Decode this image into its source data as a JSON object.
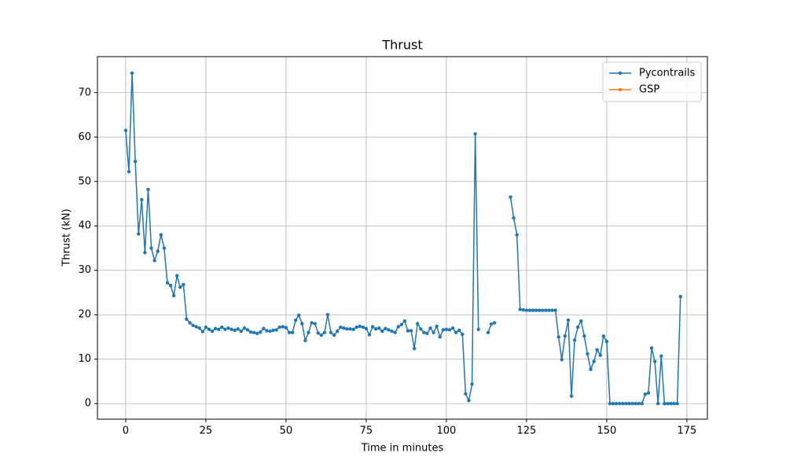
{
  "chart_data": {
    "type": "line",
    "title": "Thrust",
    "xlabel": "Time in minutes",
    "ylabel": "Thrust (kN)",
    "x": [
      0,
      1,
      2,
      3,
      4,
      5,
      6,
      7,
      8,
      9,
      10,
      11,
      12,
      13,
      14,
      15,
      16,
      17,
      18,
      19,
      20,
      21,
      22,
      23,
      24,
      25,
      26,
      27,
      28,
      29,
      30,
      31,
      32,
      33,
      34,
      35,
      36,
      37,
      38,
      39,
      40,
      41,
      42,
      43,
      44,
      45,
      46,
      47,
      48,
      49,
      50,
      51,
      52,
      53,
      54,
      55,
      56,
      57,
      58,
      59,
      60,
      61,
      62,
      63,
      64,
      65,
      66,
      67,
      68,
      69,
      70,
      71,
      72,
      73,
      74,
      75,
      76,
      77,
      78,
      79,
      80,
      81,
      82,
      83,
      84,
      85,
      86,
      87,
      88,
      89,
      90,
      91,
      92,
      93,
      94,
      95,
      96,
      97,
      98,
      99,
      100,
      101,
      102,
      103,
      104,
      105,
      106,
      107,
      108,
      109,
      110,
      111,
      112,
      113,
      114,
      115,
      116,
      117,
      118,
      119,
      120,
      121,
      122,
      123,
      124,
      125,
      126,
      127,
      128,
      129,
      130,
      131,
      132,
      133,
      134,
      135,
      136,
      137,
      138,
      139,
      140,
      141,
      142,
      143,
      144,
      145,
      146,
      147,
      148,
      149,
      150,
      151,
      152,
      153,
      154,
      155,
      156,
      157,
      158,
      159,
      160,
      161,
      162,
      163,
      164,
      165,
      166,
      167,
      168,
      169,
      170,
      171,
      172,
      173
    ],
    "series": [
      {
        "name": "Pycontrails",
        "color": "#1f77b4",
        "values": [
          61.5,
          52.2,
          74.4,
          54.5,
          38.2,
          45.9,
          34,
          48.2,
          35,
          32.2,
          34.3,
          38,
          35,
          27.2,
          26.6,
          24.3,
          28.8,
          26.2,
          26.8,
          19,
          18.2,
          17.6,
          17.3,
          17,
          16.2,
          17.2,
          16.7,
          16.3,
          16.9,
          16.7,
          17.2,
          16.7,
          17,
          16.7,
          16.5,
          16.8,
          16.3,
          17,
          16.6,
          16.1,
          16,
          15.8,
          16.1,
          16.9,
          16.4,
          16.3,
          16.5,
          16.6,
          17.2,
          17.3,
          17.1,
          16,
          16,
          18.8,
          19.9,
          18,
          14.2,
          16,
          18.2,
          18,
          15.9,
          15.4,
          16,
          20,
          16,
          15.4,
          16.3,
          17.2,
          17,
          16.8,
          16.8,
          16.7,
          17.2,
          17.4,
          17.2,
          16.9,
          15.5,
          17.3,
          16.8,
          17,
          16.3,
          16.9,
          16.6,
          16.3,
          16,
          17.3,
          17.8,
          18.6,
          16.4,
          16.4,
          12.4,
          18,
          16.8,
          16,
          15.8,
          17,
          16,
          17.4,
          15,
          16.6,
          16.7,
          16.6,
          17,
          16,
          16.5,
          15.6,
          2.2,
          0.7,
          4.4,
          60.7,
          16.7,
          null,
          null,
          16,
          17.9,
          18.2,
          null,
          null,
          null,
          null,
          46.5,
          41.8,
          38,
          21.2,
          21.1,
          21,
          21,
          21,
          21,
          21,
          21,
          21,
          21,
          21,
          21,
          15,
          9.9,
          15.2,
          18.8,
          1.7,
          14.3,
          17.2,
          18.6,
          15.2,
          11.2,
          7.7,
          9.5,
          12.1,
          10.9,
          15.2,
          14,
          0,
          0,
          0,
          0,
          0,
          0,
          0,
          0,
          0,
          0,
          0,
          2.1,
          2.4,
          12.5,
          9.5,
          0,
          10.7,
          0,
          0,
          0,
          0,
          0,
          24.1
        ]
      },
      {
        "name": "GSP",
        "color": "#ff7f0e",
        "values": [
          null,
          null,
          null,
          null,
          null,
          null,
          null,
          null,
          null,
          null,
          null,
          null,
          null,
          null,
          null,
          null,
          null,
          null,
          null,
          null,
          null,
          null,
          null,
          null,
          null,
          null,
          null,
          null,
          null,
          null,
          null,
          null,
          null,
          null,
          null,
          null,
          null,
          null,
          null,
          null,
          null,
          null,
          null,
          null,
          null,
          null,
          null,
          null,
          null,
          null,
          null,
          null,
          null,
          null,
          null,
          null,
          null,
          null,
          null,
          null,
          null,
          null,
          null,
          null,
          null,
          null,
          null,
          null,
          null,
          null,
          null,
          null,
          null,
          null,
          null,
          null,
          null,
          null,
          null,
          null,
          null,
          null,
          null,
          null,
          null,
          null,
          null,
          null,
          null,
          null,
          null,
          null,
          null,
          null,
          null,
          null,
          null,
          null,
          null,
          null,
          null,
          null,
          null,
          null,
          null,
          null,
          null,
          null,
          null,
          null,
          null,
          null,
          null,
          null,
          null,
          null,
          null,
          null,
          null,
          null,
          null,
          null,
          null,
          null,
          null,
          null,
          null,
          null,
          null,
          null,
          null,
          null,
          null,
          null,
          null,
          null,
          null,
          null,
          null,
          null,
          null,
          null,
          null,
          null,
          null,
          null,
          null,
          null,
          null,
          null,
          null,
          null,
          null,
          null,
          null,
          null,
          null,
          null,
          null,
          null,
          null,
          null,
          null,
          null,
          null,
          null,
          null,
          null,
          null,
          null,
          null,
          null,
          null,
          null
        ]
      }
    ],
    "xlim": [
      -8.8,
      181.4
    ],
    "ylim": [
      -3.5,
      78.1
    ],
    "xticks": [
      0,
      25,
      50,
      75,
      100,
      125,
      150,
      175
    ],
    "yticks": [
      0,
      10,
      20,
      30,
      40,
      50,
      60,
      70
    ],
    "grid": true,
    "legend": "upper right"
  }
}
